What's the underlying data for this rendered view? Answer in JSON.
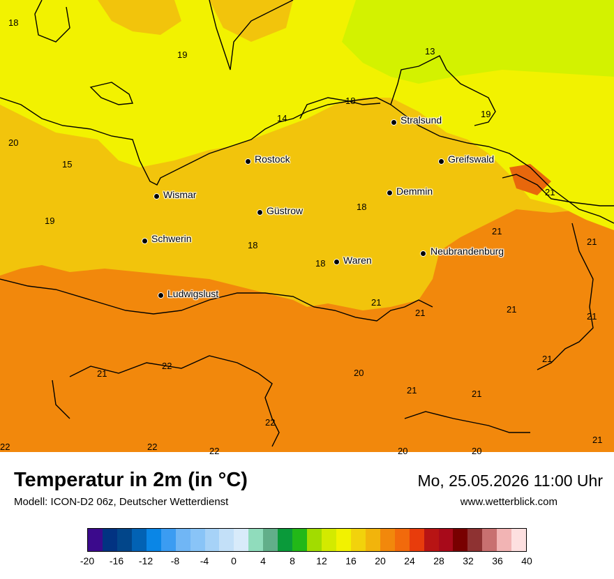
{
  "map": {
    "colors": {
      "sea_cool": "#d3f200",
      "yellow": "#f2f200",
      "gold": "#f2c40c",
      "orange": "#f2880c",
      "deep_orange": "#e8670c",
      "outline": "#000000"
    },
    "cities": [
      {
        "name": "Stralsund"
      },
      {
        "name": "Rostock"
      },
      {
        "name": "Greifswald"
      },
      {
        "name": "Wismar"
      },
      {
        "name": "Demmin"
      },
      {
        "name": "Güstrow"
      },
      {
        "name": "Schwerin"
      },
      {
        "name": "Neubrandenburg"
      },
      {
        "name": "Waren"
      },
      {
        "name": "Ludwigslust"
      }
    ],
    "values": [
      "18",
      "19",
      "13",
      "18",
      "14",
      "19",
      "20",
      "15",
      "21",
      "18",
      "19",
      "21",
      "21",
      "18",
      "18",
      "21",
      "21",
      "21",
      "21",
      "22",
      "21",
      "20",
      "21",
      "21",
      "21",
      "22",
      "22",
      "22",
      "22",
      "20",
      "20",
      "21"
    ]
  },
  "footer": {
    "title": "Temperatur in 2m (in °C)",
    "model": "Modell: ICON-D2 06z, Deutscher Wetterdienst",
    "datetime": "Mo, 25.05.2026 11:00 Uhr",
    "website": "www.wetterblick.com"
  },
  "legend": {
    "colors": [
      "#3b0a8c",
      "#023382",
      "#02468a",
      "#0262b4",
      "#0a86e6",
      "#3b9cf2",
      "#70b6f5",
      "#89c4f7",
      "#a6d2f7",
      "#c3e0f8",
      "#d8ebfa",
      "#90dcbc",
      "#62ae8a",
      "#0a9a3a",
      "#22b818",
      "#a2dc00",
      "#d3ea00",
      "#f2f200",
      "#f2d20c",
      "#f2b40c",
      "#f2880c",
      "#f26a0c",
      "#e83c0c",
      "#b81414",
      "#a80a1a",
      "#780000",
      "#8e3232",
      "#c87070",
      "#f2b4b4",
      "#fde0e0"
    ],
    "ticks": [
      "-20",
      "-16",
      "-12",
      "-8",
      "-4",
      "0",
      "4",
      "8",
      "12",
      "16",
      "20",
      "24",
      "28",
      "32",
      "36",
      "40"
    ]
  }
}
